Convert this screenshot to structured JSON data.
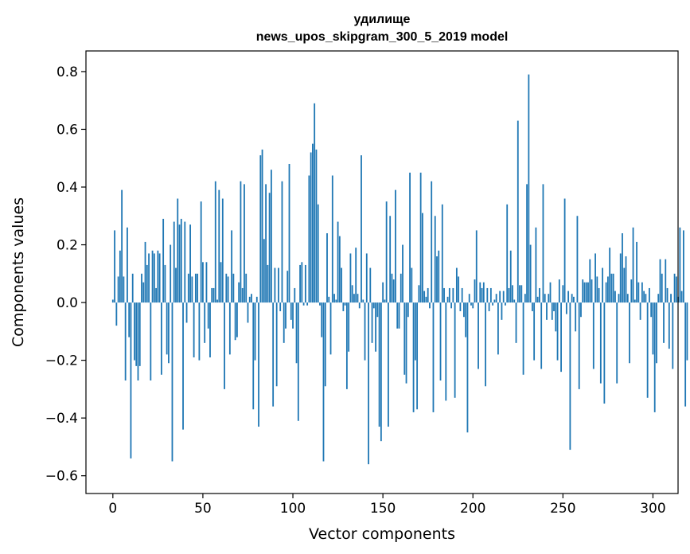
{
  "chart_data": {
    "type": "bar",
    "title": "удилище",
    "subtitle": "news_upos_skipgram_300_5_2019 model",
    "xlabel": "Vector components",
    "ylabel": "Components values",
    "xlim": [
      -14.95,
      313.95
    ],
    "ylim": [
      -0.6615,
      0.8715
    ],
    "xticks": [
      0,
      50,
      100,
      150,
      200,
      250,
      300
    ],
    "yticks": [
      -0.6,
      -0.4,
      -0.2,
      0.0,
      0.2,
      0.4,
      0.6,
      0.8
    ],
    "ytick_labels": [
      "−0.6",
      "−0.4",
      "−0.2",
      "0.0",
      "0.2",
      "0.4",
      "0.6",
      "0.8"
    ],
    "bar_color": "#1f77b4",
    "grid": false,
    "legend": "none",
    "values": [
      0.01,
      0.25,
      -0.08,
      0.09,
      0.18,
      0.39,
      0.09,
      -0.27,
      0.26,
      -0.12,
      -0.54,
      0.1,
      -0.2,
      -0.22,
      -0.27,
      -0.22,
      0.1,
      0.07,
      0.21,
      0.13,
      0.17,
      -0.27,
      0.18,
      0.17,
      0.05,
      0.18,
      0.17,
      -0.25,
      0.29,
      0.13,
      -0.18,
      -0.21,
      0.2,
      -0.55,
      0.28,
      0.12,
      0.36,
      0.27,
      0.29,
      -0.44,
      0.28,
      -0.07,
      0.1,
      0.27,
      0.09,
      -0.19,
      0.1,
      0.1,
      -0.2,
      0.35,
      0.14,
      -0.14,
      0.14,
      -0.09,
      -0.19,
      0.05,
      0.05,
      0.42,
      0.01,
      0.39,
      0.14,
      0.36,
      -0.3,
      0.1,
      0.09,
      -0.18,
      0.25,
      0.1,
      -0.13,
      -0.12,
      0.07,
      0.42,
      0.05,
      0.41,
      0.1,
      -0.07,
      0.02,
      0.03,
      -0.37,
      -0.2,
      0.02,
      -0.43,
      0.51,
      0.53,
      0.22,
      0.41,
      0.13,
      0.38,
      0.46,
      -0.36,
      0.12,
      -0.29,
      0.12,
      -0.03,
      0.42,
      -0.14,
      -0.09,
      0.11,
      0.48,
      -0.06,
      -0.09,
      0.05,
      -0.21,
      -0.41,
      0.13,
      0.14,
      -0.01,
      0.13,
      -0.01,
      0.44,
      0.52,
      0.55,
      0.69,
      0.53,
      0.34,
      -0.01,
      -0.12,
      -0.55,
      -0.29,
      0.24,
      0.02,
      -0.18,
      0.44,
      0.03,
      0.01,
      0.28,
      0.23,
      0.12,
      -0.03,
      -0.01,
      -0.3,
      -0.17,
      0.17,
      0.06,
      0.03,
      0.19,
      0.03,
      -0.02,
      0.51,
      0.01,
      -0.2,
      0.17,
      -0.56,
      0.12,
      -0.14,
      -0.02,
      -0.17,
      -0.05,
      -0.43,
      -0.48,
      0.07,
      0.01,
      0.35,
      -0.43,
      0.3,
      0.1,
      0.08,
      0.39,
      -0.09,
      -0.09,
      0.1,
      0.2,
      -0.25,
      -0.28,
      -0.05,
      0.45,
      0.12,
      -0.38,
      -0.2,
      -0.37,
      0.06,
      0.45,
      0.31,
      0.04,
      0.02,
      0.05,
      -0.02,
      0.42,
      -0.38,
      0.3,
      0.16,
      0.18,
      -0.27,
      0.34,
      0.05,
      -0.34,
      0.02,
      0.05,
      -0.02,
      0.05,
      -0.33,
      0.12,
      0.09,
      -0.03,
      0.05,
      -0.05,
      -0.12,
      -0.45,
      0.03,
      -0.01,
      -0.02,
      0.08,
      0.25,
      -0.23,
      0.07,
      0.05,
      0.07,
      -0.29,
      0.05,
      -0.03,
      0.05,
      -0.01,
      0.01,
      0.03,
      -0.18,
      0.04,
      -0.06,
      0.04,
      -0.01,
      0.34,
      0.05,
      0.18,
      0.06,
      0.01,
      -0.14,
      0.63,
      0.06,
      0.06,
      -0.25,
      0.03,
      0.41,
      0.79,
      0.2,
      -0.03,
      -0.2,
      0.26,
      0.02,
      0.05,
      -0.23,
      0.41,
      0.03,
      -0.06,
      0.03,
      0.07,
      -0.06,
      -0.03,
      -0.1,
      -0.2,
      0.08,
      -0.24,
      0.06,
      0.36,
      -0.04,
      0.04,
      -0.51,
      0.03,
      0.02,
      -0.1,
      0.3,
      -0.3,
      -0.05,
      0.08,
      0.07,
      0.07,
      0.07,
      0.15,
      0.08,
      -0.23,
      0.17,
      0.09,
      0.05,
      -0.28,
      0.12,
      -0.35,
      0.07,
      0.09,
      0.19,
      0.1,
      0.1,
      0.04,
      -0.28,
      0.03,
      0.17,
      0.24,
      0.12,
      0.16,
      0.03,
      -0.21,
      0.08,
      0.26,
      0.01,
      0.21,
      0.07,
      -0.06,
      0.07,
      0.04,
      0.03,
      -0.33,
      0.05,
      -0.05,
      -0.18,
      -0.38,
      -0.21,
      0.03,
      0.15,
      0.1,
      -0.14,
      0.15,
      0.05,
      -0.16,
      0.03,
      -0.23,
      0.1,
      0.09,
      0.02,
      0.26,
      0.04,
      0.25,
      -0.36,
      -0.2
    ]
  }
}
